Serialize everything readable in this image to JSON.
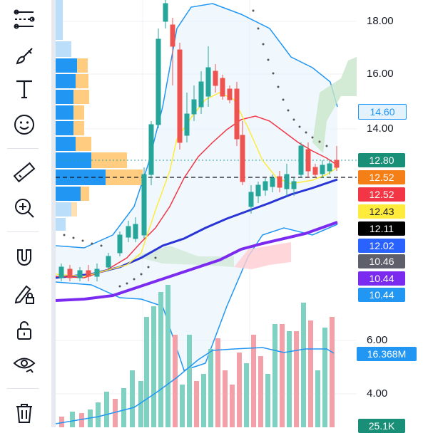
{
  "toolbar": {
    "tools": [
      {
        "name": "trend-line-tool-icon"
      },
      {
        "name": "brush-tool-icon"
      },
      {
        "name": "text-tool-icon"
      },
      {
        "name": "emoji-tool-icon"
      },
      {
        "name": "ruler-tool-icon"
      },
      {
        "name": "zoom-in-tool-icon"
      },
      {
        "name": "magnet-tool-icon"
      },
      {
        "name": "lock-drawing-tool-icon"
      },
      {
        "name": "unlock-tool-icon"
      },
      {
        "name": "hide-drawings-tool-icon"
      },
      {
        "name": "trash-tool-icon"
      }
    ]
  },
  "price_axis": {
    "ticks": [
      "18.00",
      "16.00",
      "14.00"
    ],
    "volume_ticks": [
      "6.00",
      "4.00"
    ]
  },
  "price_labels": [
    {
      "text": "14.60",
      "bg": "#2196f3",
      "fg": "#ffffff",
      "style": "light"
    },
    {
      "text": "12.80",
      "bg": "#1a8f78",
      "fg": "#ffffff"
    },
    {
      "text": "12.52",
      "bg": "#f57f17",
      "fg": "#ffffff"
    },
    {
      "text": "12.52",
      "bg": "#f23645",
      "fg": "#ffffff"
    },
    {
      "text": "12.43",
      "bg": "#ffeb3b",
      "fg": "#131722"
    },
    {
      "text": "12.11",
      "bg": "#000000",
      "fg": "#ffffff"
    },
    {
      "text": "12.02",
      "bg": "#2962ff",
      "fg": "#ffffff"
    },
    {
      "text": "10.46",
      "bg": "#5d606b",
      "fg": "#ffffff"
    },
    {
      "text": "10.44",
      "bg": "#7b2bf0",
      "fg": "#ffffff"
    },
    {
      "text": "10.44",
      "bg": "#2196f3",
      "fg": "#ffffff"
    },
    {
      "text": "16.368M",
      "bg": "#2196f3",
      "fg": "#ffffff"
    },
    {
      "text": "25.1K",
      "bg": "#1a8f78",
      "fg": "#ffffff"
    }
  ],
  "colors": {
    "up": "#26a69a",
    "down": "#ef5350",
    "volume_up": "#7fd1c1",
    "volume_down": "#f4a0a8",
    "bollinger": "#2196f3",
    "ma_fast": "#ffeb3b",
    "ma_mid": "#f23645",
    "ma_slow": "#2a35d6",
    "ma_long": "#7b2bf0"
  }
}
